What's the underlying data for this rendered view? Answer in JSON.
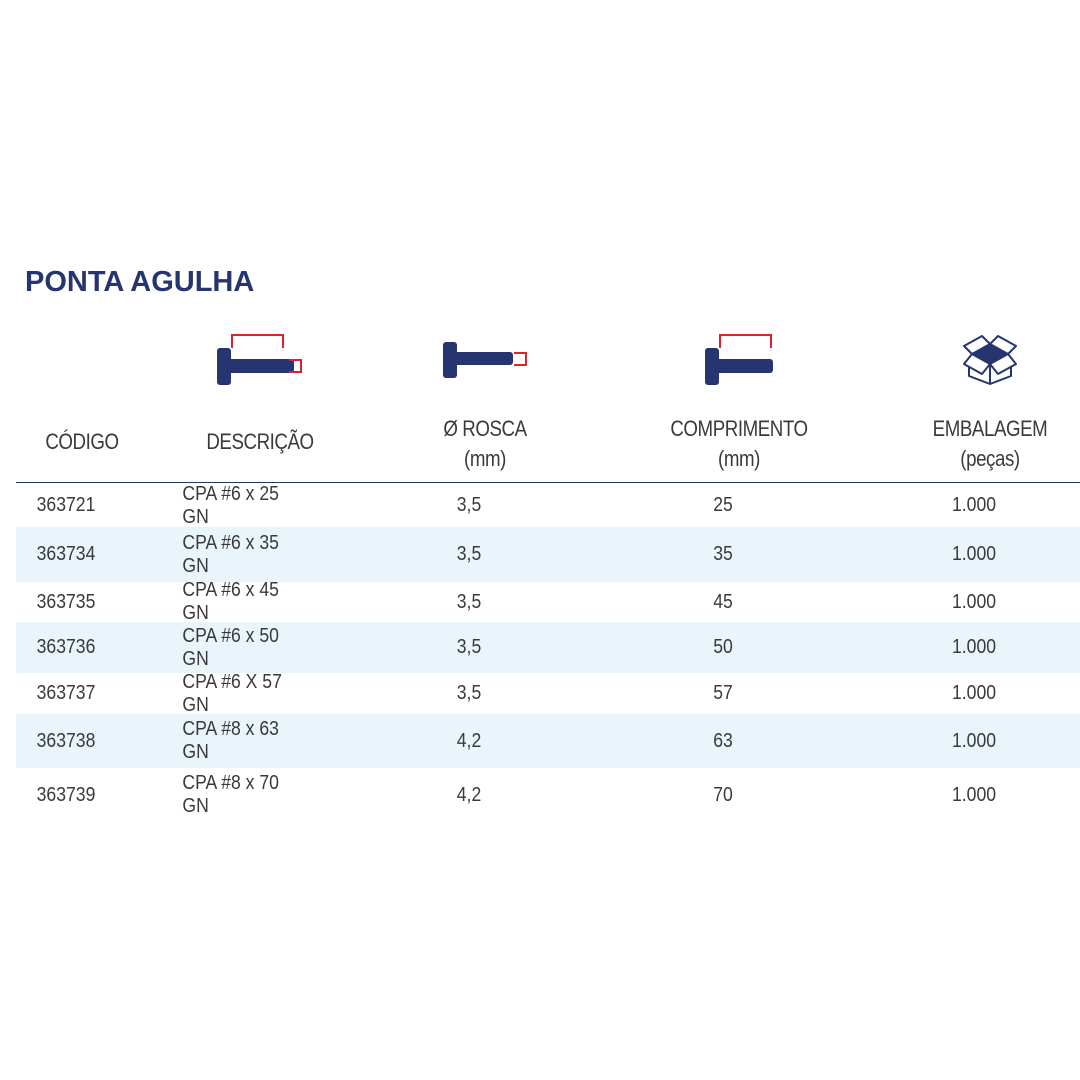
{
  "title": "PONTA AGULHA",
  "colors": {
    "navy": "#26356f",
    "red": "#d9232d",
    "shade": "#eaf4fb"
  },
  "icons": [
    "screw-length-total-icon",
    "screw-thread-diameter-icon",
    "screw-length-icon",
    "open-box-icon"
  ],
  "headers": {
    "codigo": "CÓDIGO",
    "descricao": "DESCRIÇÃO",
    "rosca": "Ø ROSCA",
    "rosca_unit": "(mm)",
    "comprimento": "COMPRIMENTO",
    "comprimento_unit": "(mm)",
    "embalagem": "EMBALAGEM",
    "embalagem_unit": "(peças)"
  },
  "rows": [
    {
      "codigo": "363721",
      "descricao": "CPA #6 x 25 GN",
      "rosca": "3,5",
      "comprimento": "25",
      "embalagem": "1.000"
    },
    {
      "codigo": "363734",
      "descricao": "CPA #6 x 35 GN",
      "rosca": "3,5",
      "comprimento": "35",
      "embalagem": "1.000"
    },
    {
      "codigo": "363735",
      "descricao": "CPA #6 x 45 GN",
      "rosca": "3,5",
      "comprimento": "45",
      "embalagem": "1.000"
    },
    {
      "codigo": "363736",
      "descricao": "CPA #6 x 50 GN",
      "rosca": "3,5",
      "comprimento": "50",
      "embalagem": "1.000"
    },
    {
      "codigo": "363737",
      "descricao": "CPA #6 X 57 GN",
      "rosca": "3,5",
      "comprimento": "57",
      "embalagem": "1.000"
    },
    {
      "codigo": "363738",
      "descricao": "CPA #8 x 63 GN",
      "rosca": "4,2",
      "comprimento": "63",
      "embalagem": "1.000"
    },
    {
      "codigo": "363739",
      "descricao": "CPA #8 x 70 GN",
      "rosca": "4,2",
      "comprimento": "70",
      "embalagem": "1.000"
    }
  ]
}
